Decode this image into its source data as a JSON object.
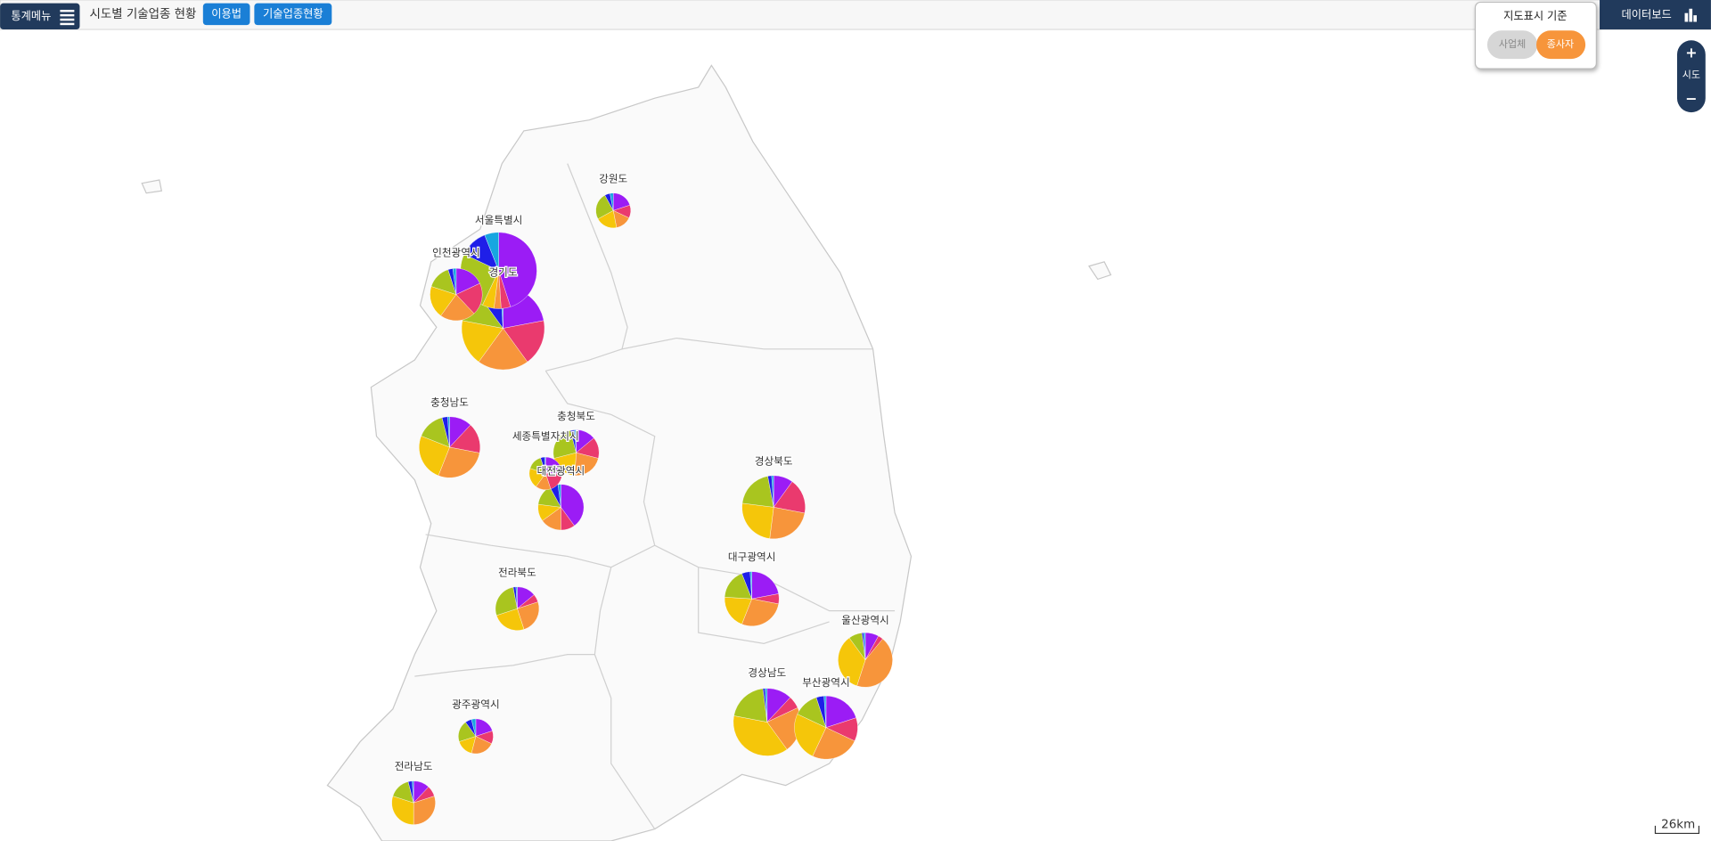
{
  "header": {
    "menu": "통계메뉴",
    "title": "시도별 기술업종 현황",
    "buttons": [
      "이용법",
      "기술업종현황"
    ],
    "dashboard": "데이터보드"
  },
  "legend_box": {
    "title": "지도표시 기준",
    "options": [
      "사업체",
      "종사자"
    ],
    "selected": 1
  },
  "zoom": {
    "in": "+",
    "level": "시도",
    "out": "−"
  },
  "scale": "26km",
  "slice_colors": [
    "#9b1cf5",
    "#ea3a6e",
    "#f7953b",
    "#f5c60a",
    "#a9c51f",
    "#1f1fe8",
    "#17a6e0"
  ],
  "regions": [
    {
      "name": "강원도",
      "values": [
        20,
        12,
        15,
        20,
        25,
        5,
        3
      ]
    },
    {
      "name": "서울특별시",
      "values": [
        45,
        4,
        3,
        5,
        25,
        12,
        6
      ]
    },
    {
      "name": "인천광역시",
      "values": [
        18,
        20,
        22,
        20,
        15,
        3,
        2
      ]
    },
    {
      "name": "경기도",
      "values": [
        22,
        18,
        20,
        18,
        12,
        9,
        1
      ]
    },
    {
      "name": "충청남도",
      "values": [
        12,
        16,
        28,
        25,
        15,
        3,
        1
      ]
    },
    {
      "name": "충청북도",
      "values": [
        14,
        15,
        22,
        20,
        25,
        3,
        1
      ]
    },
    {
      "name": "세종특별자치시",
      "values": [
        25,
        20,
        15,
        20,
        15,
        4,
        1
      ]
    },
    {
      "name": "대전광역시",
      "values": [
        40,
        10,
        15,
        12,
        15,
        6,
        2
      ]
    },
    {
      "name": "경상북도",
      "values": [
        10,
        18,
        24,
        25,
        20,
        2,
        1
      ]
    },
    {
      "name": "전라북도",
      "values": [
        14,
        6,
        25,
        25,
        27,
        2,
        1
      ]
    },
    {
      "name": "대구광역시",
      "values": [
        22,
        6,
        28,
        20,
        18,
        5,
        1
      ]
    },
    {
      "name": "울산광역시",
      "values": [
        8,
        3,
        44,
        35,
        8,
        1,
        1
      ]
    },
    {
      "name": "경상남도",
      "values": [
        12,
        6,
        22,
        38,
        20,
        1,
        1
      ]
    },
    {
      "name": "부산광역시",
      "values": [
        20,
        12,
        25,
        25,
        13,
        4,
        1
      ]
    },
    {
      "name": "광주광역시",
      "values": [
        20,
        12,
        22,
        16,
        20,
        6,
        4
      ]
    },
    {
      "name": "전라남도",
      "values": [
        12,
        8,
        30,
        30,
        16,
        3,
        1
      ]
    }
  ]
}
